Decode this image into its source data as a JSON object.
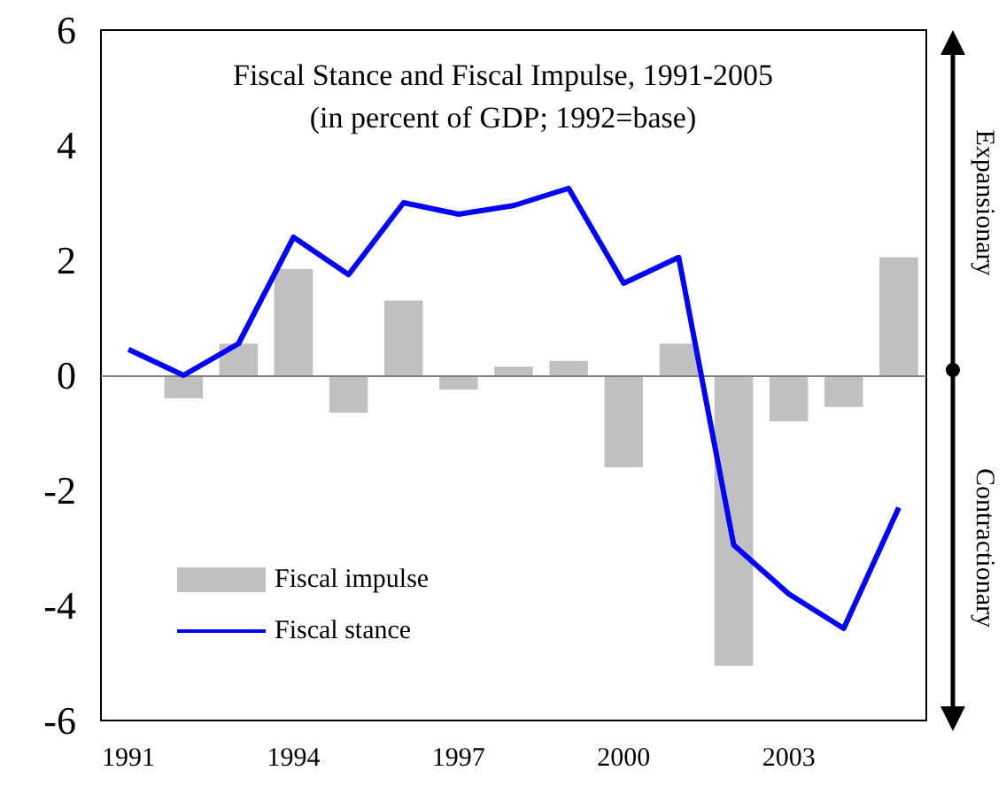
{
  "chart_data": {
    "type": "bar",
    "title": "Fiscal Stance and Fiscal Impulse, 1991-2005",
    "subtitle": "(in percent of GDP; 1992=base)",
    "categories": [
      "1991",
      null,
      null,
      "1994",
      null,
      null,
      "1997",
      null,
      null,
      "2000",
      null,
      null,
      "2003",
      null,
      null
    ],
    "series": [
      {
        "name": "Fiscal impulse",
        "color": "#c0c0c0",
        "values": [
          null,
          -0.4,
          0.55,
          1.85,
          -0.65,
          1.3,
          -0.25,
          0.15,
          0.25,
          -1.6,
          0.55,
          -5.05,
          -0.8,
          -0.55,
          2.05
        ]
      },
      {
        "name": "Fiscal stance",
        "type": "line",
        "color": "#0000ff",
        "values": [
          0.45,
          0,
          0.55,
          2.4,
          1.75,
          3.0,
          2.8,
          2.95,
          3.25,
          1.6,
          2.05,
          -2.95,
          -3.8,
          -4.4,
          -2.3
        ]
      }
    ],
    "ylim": [
      -6,
      6
    ],
    "yticks": [
      -6,
      -4,
      -2,
      0,
      2,
      4,
      6
    ],
    "ref_lines": [
      {
        "axis": "y",
        "value": 0,
        "color": "#808080"
      }
    ],
    "annotations": [
      "Expansionary",
      "Contractionary"
    ],
    "grid": false,
    "legend": "bottom left",
    "marker": "none",
    "line_style": "solid"
  }
}
